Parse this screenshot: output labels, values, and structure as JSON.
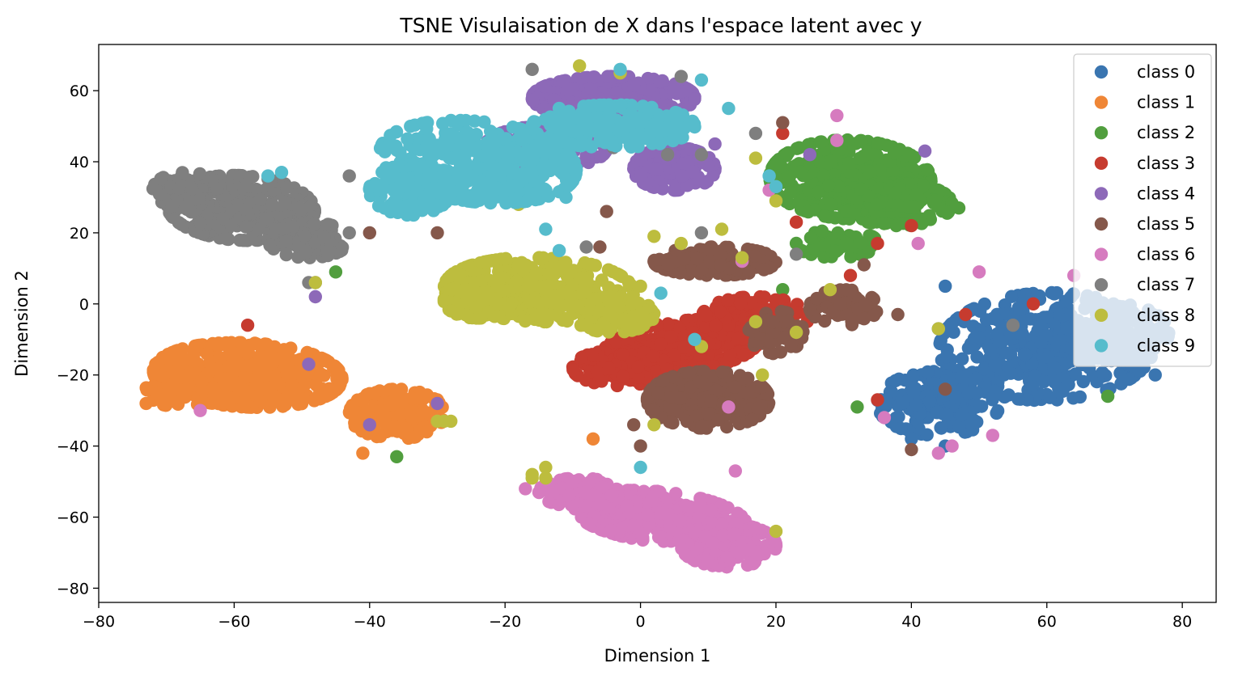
{
  "chart_data": {
    "type": "scatter",
    "title": "TSNE Visulaisation de X dans l'espace latent avec y",
    "xlabel": "Dimension 1",
    "ylabel": "Dimension 2",
    "xlim": [
      -80,
      85
    ],
    "ylim": [
      -84,
      73
    ],
    "xticks": [
      -80,
      -60,
      -40,
      -20,
      0,
      20,
      40,
      60,
      80
    ],
    "yticks": [
      -80,
      -60,
      -40,
      -20,
      0,
      20,
      40,
      60
    ],
    "xtick_labels": [
      "−80",
      "−60",
      "−40",
      "−20",
      "0",
      "20",
      "40",
      "60",
      "80"
    ],
    "ytick_labels": [
      "−80",
      "−60",
      "−40",
      "−20",
      "0",
      "20",
      "40",
      "60"
    ],
    "grid": false,
    "legend_position": "top-right",
    "series": [
      {
        "name": "class 0",
        "color": "#3a75b0",
        "blobs": [
          {
            "cx": 60,
            "cy": -12,
            "rx": 16,
            "ry": 15,
            "n": 380,
            "angle": 22
          },
          {
            "cx": 44,
            "cy": -28,
            "rx": 9,
            "ry": 9,
            "n": 160,
            "angle": 10
          },
          {
            "cx": 70,
            "cy": -8,
            "rx": 8,
            "ry": 8,
            "n": 120,
            "angle": 0
          }
        ],
        "points": [
          [
            45,
            5
          ],
          [
            44,
            -7
          ],
          [
            45,
            -40
          ],
          [
            36,
            -28
          ],
          [
            76,
            -20
          ],
          [
            40,
            -38
          ]
        ]
      },
      {
        "name": "class 1",
        "color": "#ef8636",
        "blobs": [
          {
            "cx": -58,
            "cy": -20,
            "rx": 14,
            "ry": 9,
            "n": 420,
            "angle": -8
          },
          {
            "cx": -36,
            "cy": -31,
            "rx": 7,
            "ry": 7,
            "n": 160,
            "angle": 0
          },
          {
            "cx": -68,
            "cy": -24,
            "rx": 5,
            "ry": 5,
            "n": 60,
            "angle": 0
          }
        ],
        "points": [
          [
            -73,
            -28
          ],
          [
            -30,
            -27
          ],
          [
            -7,
            -38
          ],
          [
            -41,
            -42
          ],
          [
            -30,
            -33
          ]
        ]
      },
      {
        "name": "class 2",
        "color": "#519e3e",
        "blobs": [
          {
            "cx": 31,
            "cy": 35,
            "rx": 12,
            "ry": 11,
            "n": 380,
            "angle": -20
          },
          {
            "cx": 38,
            "cy": 28,
            "rx": 8,
            "ry": 6,
            "n": 140,
            "angle": 0
          },
          {
            "cx": 29,
            "cy": 17,
            "rx": 6,
            "ry": 4,
            "n": 60,
            "angle": 0
          }
        ],
        "points": [
          [
            -45,
            9
          ],
          [
            -36,
            -43
          ],
          [
            69,
            -26
          ],
          [
            47,
            27
          ],
          [
            32,
            -29
          ],
          [
            18,
            10
          ],
          [
            21,
            4
          ]
        ]
      },
      {
        "name": "class 3",
        "color": "#c63b2f",
        "blobs": [
          {
            "cx": 6,
            "cy": -12,
            "rx": 12,
            "ry": 7,
            "n": 320,
            "angle": 18
          },
          {
            "cx": 17,
            "cy": -4,
            "rx": 8,
            "ry": 6,
            "n": 140,
            "angle": 0
          },
          {
            "cx": -3,
            "cy": -18,
            "rx": 7,
            "ry": 5,
            "n": 120,
            "angle": 0
          }
        ],
        "points": [
          [
            -58,
            -6
          ],
          [
            58,
            0
          ],
          [
            23,
            23
          ],
          [
            21,
            48
          ],
          [
            40,
            22
          ],
          [
            35,
            -27
          ],
          [
            31,
            8
          ],
          [
            35,
            17
          ],
          [
            48,
            -3
          ]
        ]
      },
      {
        "name": "class 4",
        "color": "#8d69b8",
        "blobs": [
          {
            "cx": -4,
            "cy": 58,
            "rx": 12,
            "ry": 6,
            "n": 260,
            "angle": 0
          },
          {
            "cx": 5,
            "cy": 38,
            "rx": 6,
            "ry": 6,
            "n": 180,
            "angle": 0
          },
          {
            "cx": -14,
            "cy": 44,
            "rx": 9,
            "ry": 6,
            "n": 130,
            "angle": 0
          }
        ],
        "points": [
          [
            -49,
            -17
          ],
          [
            -40,
            -34
          ],
          [
            -48,
            2
          ],
          [
            -30,
            -28
          ],
          [
            42,
            43
          ],
          [
            11,
            45
          ],
          [
            25,
            42
          ],
          [
            -35,
            36
          ]
        ]
      },
      {
        "name": "class 5",
        "color": "#85584b",
        "blobs": [
          {
            "cx": 10,
            "cy": -27,
            "rx": 9,
            "ry": 8,
            "n": 260,
            "angle": 0
          },
          {
            "cx": 11,
            "cy": 12,
            "rx": 9,
            "ry": 4,
            "n": 150,
            "angle": 0
          },
          {
            "cx": 30,
            "cy": -1,
            "rx": 5,
            "ry": 5,
            "n": 80,
            "angle": 0
          },
          {
            "cx": 20,
            "cy": -8,
            "rx": 4,
            "ry": 6,
            "n": 60,
            "angle": 0
          }
        ],
        "points": [
          [
            -5,
            26
          ],
          [
            -6,
            16
          ],
          [
            21,
            51
          ],
          [
            -17,
            2
          ],
          [
            38,
            -3
          ],
          [
            33,
            11
          ],
          [
            40,
            -41
          ],
          [
            0,
            -40
          ],
          [
            -1,
            -34
          ],
          [
            -40,
            20
          ],
          [
            2,
            -30
          ],
          [
            -30,
            20
          ],
          [
            45,
            -24
          ]
        ]
      },
      {
        "name": "class 6",
        "color": "#d67bbf",
        "blobs": [
          {
            "cx": 3,
            "cy": -60,
            "rx": 13,
            "ry": 7,
            "n": 320,
            "angle": -15
          },
          {
            "cx": 13,
            "cy": -68,
            "rx": 7,
            "ry": 6,
            "n": 140,
            "angle": 0
          },
          {
            "cx": -9,
            "cy": -53,
            "rx": 6,
            "ry": 4,
            "n": 80,
            "angle": 0
          }
        ],
        "points": [
          [
            -65,
            -30
          ],
          [
            50,
            9
          ],
          [
            64,
            8
          ],
          [
            52,
            -37
          ],
          [
            41,
            17
          ],
          [
            36,
            -32
          ],
          [
            44,
            -42
          ],
          [
            29,
            46
          ],
          [
            29,
            53
          ],
          [
            13,
            -29
          ],
          [
            19,
            32
          ],
          [
            15,
            12
          ],
          [
            46,
            -40
          ],
          [
            -17,
            -52
          ],
          [
            14,
            -47
          ]
        ]
      },
      {
        "name": "class 7",
        "color": "#7f7f7f",
        "blobs": [
          {
            "cx": -59,
            "cy": 27,
            "rx": 11,
            "ry": 9,
            "n": 320,
            "angle": -15
          },
          {
            "cx": -49,
            "cy": 18,
            "rx": 6,
            "ry": 5,
            "n": 100,
            "angle": 0
          },
          {
            "cx": -67,
            "cy": 32,
            "rx": 5,
            "ry": 5,
            "n": 80,
            "angle": 0
          }
        ],
        "points": [
          [
            -16,
            66
          ],
          [
            -4,
            44
          ],
          [
            23,
            14
          ],
          [
            17,
            48
          ],
          [
            9,
            20
          ],
          [
            9,
            42
          ],
          [
            -8,
            16
          ],
          [
            -43,
            36
          ],
          [
            -48,
            6
          ],
          [
            -49,
            6
          ],
          [
            6,
            64
          ],
          [
            4,
            42
          ],
          [
            -43,
            20
          ],
          [
            55,
            -6
          ]
        ]
      },
      {
        "name": "class 8",
        "color": "#bdbd3e",
        "blobs": [
          {
            "cx": -15,
            "cy": 4,
            "rx": 14,
            "ry": 9,
            "n": 360,
            "angle": -5
          },
          {
            "cx": -4,
            "cy": -3,
            "rx": 6,
            "ry": 5,
            "n": 120,
            "angle": 0
          },
          {
            "cx": -24,
            "cy": 1,
            "rx": 5,
            "ry": 5,
            "n": 80,
            "angle": 0
          }
        ],
        "points": [
          [
            -9,
            67
          ],
          [
            -28,
            -33
          ],
          [
            -29,
            -33
          ],
          [
            12,
            21
          ],
          [
            20,
            29
          ],
          [
            17,
            -5
          ],
          [
            15,
            13
          ],
          [
            6,
            17
          ],
          [
            18,
            -20
          ],
          [
            9,
            -12
          ],
          [
            -16,
            -48
          ],
          [
            -14,
            -46
          ],
          [
            0,
            5
          ],
          [
            -30,
            -33
          ],
          [
            44,
            -7
          ],
          [
            20,
            -64
          ],
          [
            2,
            -34
          ],
          [
            -15,
            32
          ],
          [
            -18,
            28
          ],
          [
            28,
            4
          ],
          [
            23,
            -8
          ],
          [
            -3,
            65
          ],
          [
            -16,
            -49
          ],
          [
            -14,
            -49
          ],
          [
            17,
            41
          ],
          [
            -48,
            6
          ],
          [
            2,
            19
          ]
        ]
      },
      {
        "name": "class 9",
        "color": "#56bccc",
        "blobs": [
          {
            "cx": -24,
            "cy": 40,
            "rx": 15,
            "ry": 11,
            "n": 380,
            "angle": -22
          },
          {
            "cx": -4,
            "cy": 50,
            "rx": 12,
            "ry": 6,
            "n": 200,
            "angle": 0
          },
          {
            "cx": -34,
            "cy": 32,
            "rx": 6,
            "ry": 7,
            "n": 120,
            "angle": 0
          }
        ],
        "points": [
          [
            -55,
            36
          ],
          [
            -53,
            37
          ],
          [
            -14,
            21
          ],
          [
            -12,
            15
          ],
          [
            -11,
            30
          ],
          [
            9,
            63
          ],
          [
            8,
            -10
          ],
          [
            3,
            3
          ],
          [
            0,
            -46
          ],
          [
            -3,
            66
          ],
          [
            -12,
            55
          ],
          [
            19,
            36
          ],
          [
            20,
            33
          ],
          [
            13,
            55
          ]
        ]
      }
    ]
  }
}
